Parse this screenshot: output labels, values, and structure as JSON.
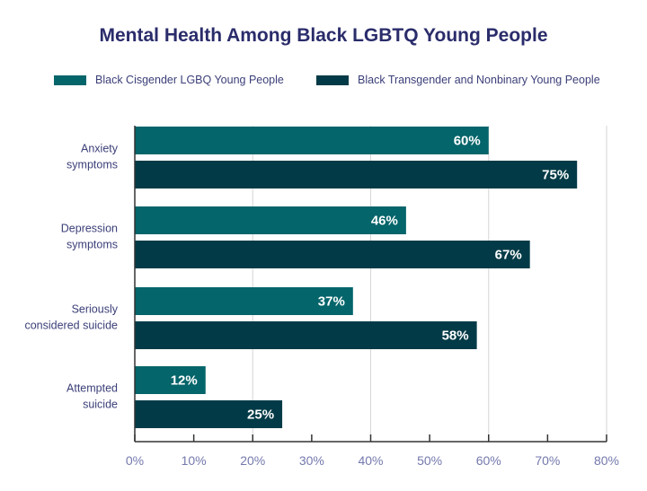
{
  "chart_data": {
    "type": "bar",
    "orientation": "horizontal",
    "title": "Mental Health Among Black LGBTQ Young People",
    "categories": [
      [
        "Anxiety",
        "symptoms"
      ],
      [
        "Depression",
        "symptoms"
      ],
      [
        "Seriously",
        "considered suicide"
      ],
      [
        "Attempted",
        "suicide"
      ]
    ],
    "series": [
      {
        "name": "Black Cisgender LGBQ Young People",
        "color": "#04656a",
        "values": [
          60,
          46,
          37,
          12
        ],
        "labels": [
          "60%",
          "46%",
          "37%",
          "12%"
        ]
      },
      {
        "name": "Black Transgender and Nonbinary Young People",
        "color": "#023b47",
        "values": [
          75,
          67,
          58,
          25
        ],
        "labels": [
          "75%",
          "67%",
          "58%",
          "25%"
        ]
      }
    ],
    "xlim": [
      0,
      80
    ],
    "xticks": [
      0,
      10,
      20,
      30,
      40,
      50,
      60,
      70,
      80
    ],
    "xtick_labels": [
      "0%",
      "10%",
      "20%",
      "30%",
      "40%",
      "50%",
      "60%",
      "70%",
      "80%"
    ],
    "grid": "vertical at 20% intervals",
    "legend": "top",
    "xlabel": "",
    "ylabel": ""
  }
}
